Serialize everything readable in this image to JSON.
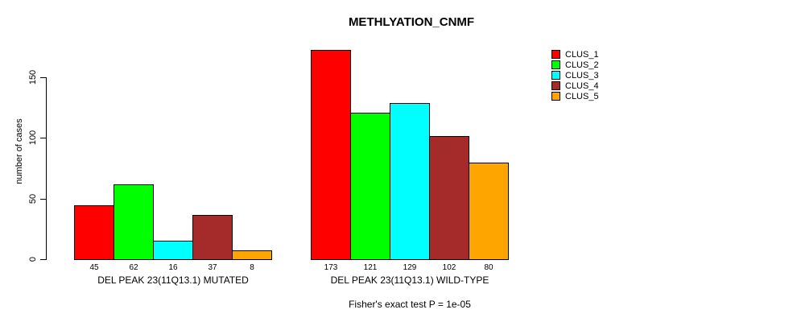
{
  "chart_data": {
    "type": "bar",
    "title": "METHLYATION_CNMF",
    "xlabel": "",
    "ylabel": "number of cases",
    "annotation": "Fisher's exact test P = 1e-05",
    "y_axis": {
      "ticks": [
        0,
        50,
        100,
        150
      ],
      "lim": [
        0,
        180
      ]
    },
    "grid": false,
    "legend_position": "right-outside",
    "series_colors": [
      "#FF0000",
      "#00FF00",
      "#00FFFF",
      "#A52A2A",
      "#FFA500"
    ],
    "legend": {
      "items": [
        {
          "label": "CLUS_1",
          "color": "#FF0000"
        },
        {
          "label": "CLUS_2",
          "color": "#00FF00"
        },
        {
          "label": "CLUS_3",
          "color": "#00FFFF"
        },
        {
          "label": "CLUS_4",
          "color": "#A52A2A"
        },
        {
          "label": "CLUS_5",
          "color": "#FFA500"
        }
      ]
    },
    "groups": [
      {
        "label": "DEL PEAK 23(11Q13.1) MUTATED",
        "values": [
          45,
          62,
          16,
          37,
          8
        ],
        "value_labels": [
          "45",
          "62",
          "16",
          "37",
          "8"
        ]
      },
      {
        "label": "DEL PEAK 23(11Q13.1) WILD-TYPE",
        "values": [
          173,
          121,
          129,
          102,
          80
        ],
        "value_labels": [
          "173",
          "121",
          "129",
          "102",
          "80"
        ]
      }
    ],
    "series": [
      {
        "name": "CLUS_1",
        "values": [
          45,
          173
        ]
      },
      {
        "name": "CLUS_2",
        "values": [
          62,
          121
        ]
      },
      {
        "name": "CLUS_3",
        "values": [
          16,
          129
        ]
      },
      {
        "name": "CLUS_4",
        "values": [
          37,
          102
        ]
      },
      {
        "name": "CLUS_5",
        "values": [
          8,
          80
        ]
      }
    ]
  }
}
